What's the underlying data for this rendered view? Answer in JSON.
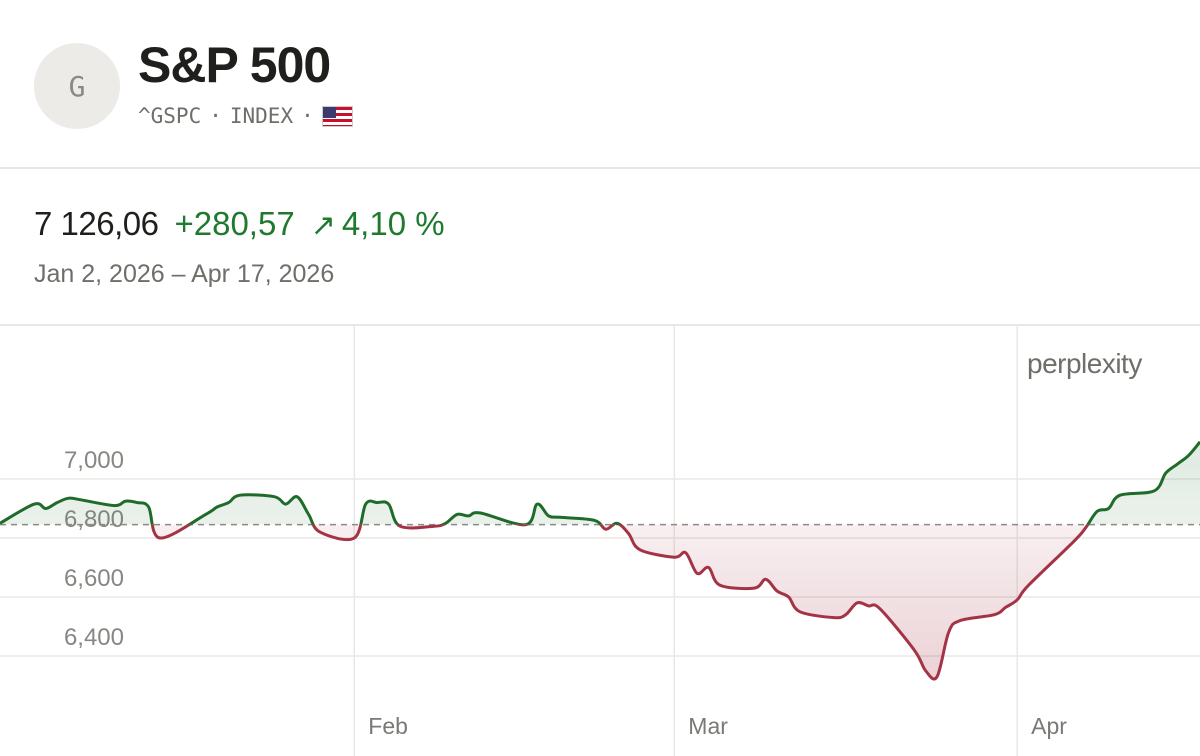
{
  "header": {
    "avatar_letter": "G",
    "title": "S&P 500",
    "ticker": "^GSPC",
    "separator": "·",
    "type": "INDEX",
    "flag": "us-flag-icon"
  },
  "stats": {
    "price": "7 126,06",
    "change": "+280,57",
    "arrow": "↗",
    "percent": "4,10 %",
    "date_range": "Jan 2, 2026 – Apr 17, 2026"
  },
  "watermark": "perplexity",
  "colors": {
    "up": "#1f6b2a",
    "down": "#a33345",
    "grid": "#e9e8e4",
    "text_muted": "#7a7975"
  },
  "chart_data": {
    "type": "line",
    "title": "",
    "xlabel": "",
    "ylabel": "",
    "baseline": 6845.49,
    "ylim": [
      6230,
      7230
    ],
    "y_ticks": [
      6400,
      6600,
      6800,
      7000
    ],
    "y_tick_labels": [
      "6,400",
      "6,600",
      "6,800",
      "7,000"
    ],
    "x_ticks": [
      {
        "date": "2026-02-02",
        "label": "Feb"
      },
      {
        "date": "2026-03-02",
        "label": "Mar"
      },
      {
        "date": "2026-04-01",
        "label": "Apr"
      }
    ],
    "grid": true,
    "series": [
      {
        "x": [
          "2026-01-02",
          "2026-01-05",
          "2026-01-06",
          "2026-01-07",
          "2026-01-08",
          "2026-01-09",
          "2026-01-12",
          "2026-01-13",
          "2026-01-14",
          "2026-01-15",
          "2026-01-16",
          "2026-01-20",
          "2026-01-21",
          "2026-01-22",
          "2026-01-23",
          "2026-01-26",
          "2026-01-27",
          "2026-01-28",
          "2026-01-29",
          "2026-01-30",
          "2026-02-02",
          "2026-02-03",
          "2026-02-04",
          "2026-02-05",
          "2026-02-06",
          "2026-02-09",
          "2026-02-10",
          "2026-02-11",
          "2026-02-12",
          "2026-02-13",
          "2026-02-17",
          "2026-02-18",
          "2026-02-19",
          "2026-02-20",
          "2026-02-23",
          "2026-02-24",
          "2026-02-25",
          "2026-02-26",
          "2026-02-27",
          "2026-03-02",
          "2026-03-03",
          "2026-03-04",
          "2026-03-05",
          "2026-03-06",
          "2026-03-09",
          "2026-03-10",
          "2026-03-11",
          "2026-03-12",
          "2026-03-13",
          "2026-03-16",
          "2026-03-17",
          "2026-03-18",
          "2026-03-19",
          "2026-03-20",
          "2026-03-23",
          "2026-03-24",
          "2026-03-25",
          "2026-03-26",
          "2026-03-27",
          "2026-03-30",
          "2026-03-31",
          "2026-04-01",
          "2026-04-02",
          "2026-04-06",
          "2026-04-07",
          "2026-04-08",
          "2026-04-09",
          "2026-04-10",
          "2026-04-13",
          "2026-04-14",
          "2026-04-15",
          "2026-04-16",
          "2026-04-17"
        ],
        "values": [
          6850,
          6915,
          6900,
          6920,
          6935,
          6930,
          6910,
          6925,
          6920,
          6905,
          6800,
          6880,
          6905,
          6920,
          6945,
          6940,
          6915,
          6940,
          6880,
          6820,
          6800,
          6915,
          6920,
          6915,
          6840,
          6840,
          6850,
          6880,
          6875,
          6885,
          6845,
          6915,
          6875,
          6870,
          6860,
          6830,
          6850,
          6815,
          6760,
          6735,
          6750,
          6680,
          6700,
          6640,
          6630,
          6660,
          6620,
          6600,
          6550,
          6530,
          6540,
          6580,
          6570,
          6560,
          6420,
          6350,
          6330,
          6480,
          6520,
          6540,
          6565,
          6590,
          6640,
          6790,
          6835,
          6890,
          6900,
          6945,
          6960,
          7020,
          7050,
          7080,
          7126.06
        ]
      }
    ]
  }
}
